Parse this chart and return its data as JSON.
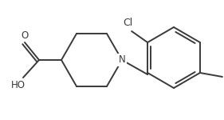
{
  "bg_color": "#ffffff",
  "line_color": "#3a3a3a",
  "line_width": 1.4,
  "font_size": 8.5,
  "figsize": [
    2.81,
    1.5
  ],
  "dpi": 100,
  "xlim": [
    0.0,
    2.81
  ],
  "ylim": [
    0.0,
    1.5
  ]
}
